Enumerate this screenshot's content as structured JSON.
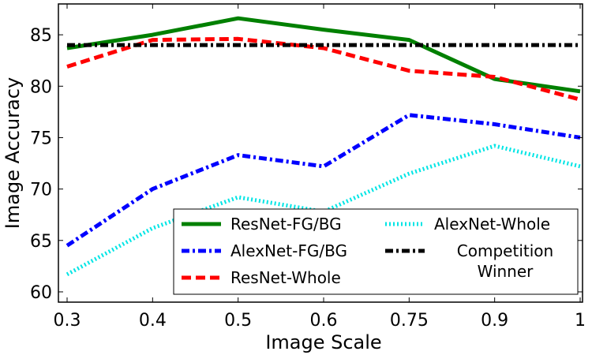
{
  "chart_data": {
    "type": "line",
    "title": "",
    "xlabel": "Image Scale",
    "ylabel": "Image Accuracy",
    "categories": [
      "0.3",
      "0.4",
      "0.5",
      "0.6",
      "0.75",
      "0.9",
      "1"
    ],
    "ylim": [
      59,
      88
    ],
    "yticks": [
      60,
      65,
      70,
      75,
      80,
      85
    ],
    "grid": false,
    "legend_position": "lower-right",
    "series": [
      {
        "name": "ResNet-FG/BG",
        "color": "#008000",
        "style": "solid",
        "values": [
          83.7,
          85.0,
          86.6,
          85.5,
          84.5,
          80.7,
          79.5
        ]
      },
      {
        "name": "AlexNet-FG/BG",
        "color": "#0000ff",
        "style": "dashdot",
        "values": [
          64.5,
          70.0,
          73.3,
          72.2,
          77.2,
          76.3,
          75.0
        ]
      },
      {
        "name": "ResNet-Whole",
        "color": "#ff0000",
        "style": "dashed",
        "values": [
          81.9,
          84.5,
          84.6,
          83.7,
          81.5,
          80.9,
          78.7
        ]
      },
      {
        "name": "AlexNet-Whole",
        "color": "#00e5e5",
        "style": "dotted",
        "values": [
          61.7,
          66.2,
          69.2,
          67.8,
          71.5,
          74.2,
          72.2
        ]
      },
      {
        "name": "Competition Winner",
        "color": "#000000",
        "style": "dashdot",
        "values": [
          84.0,
          84.0,
          84.0,
          84.0,
          84.0,
          84.0,
          84.0
        ]
      }
    ]
  }
}
